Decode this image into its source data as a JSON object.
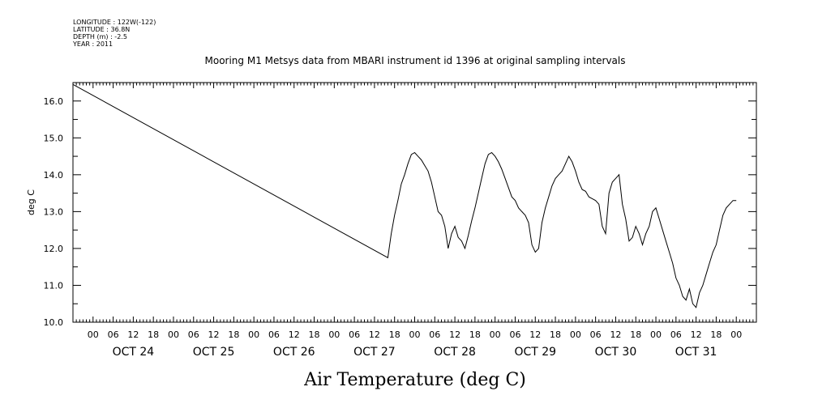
{
  "header": {
    "longitude": "LONGITUDE : 122W(-122)",
    "latitude": "LATITUDE : 36.8N",
    "depth": "DEPTH (m) : -2.5",
    "year": "YEAR : 2011"
  },
  "chart_data": {
    "type": "line",
    "title": "Mooring M1 Metsys data from MBARI instrument id 1396 at original sampling intervals",
    "xlabel": "Air Temperature (deg C)",
    "ylabel": "deg C",
    "ylim": [
      10.0,
      16.5
    ],
    "yticks": [
      "10.0",
      "11.0",
      "12.0",
      "13.0",
      "14.0",
      "15.0",
      "16.0"
    ],
    "xlim_hours": [
      -6,
      198
    ],
    "hour_labels": [
      "00",
      "06",
      "12",
      "18"
    ],
    "day_labels": [
      "OCT 24",
      "OCT 25",
      "OCT 26",
      "OCT 27",
      "OCT 28",
      "OCT 29",
      "OCT 30",
      "OCT 31"
    ],
    "grid": false,
    "legend": "none",
    "line_color": "#000000",
    "series": [
      {
        "x": [
          "2011-10-23T18:00",
          "2011-10-27T16:00",
          "2011-10-27T17:00",
          "2011-10-27T18:00",
          "2011-10-27T19:00",
          "2011-10-27T20:00",
          "2011-10-27T21:00",
          "2011-10-27T22:00",
          "2011-10-27T23:00",
          "2011-10-28T00:00",
          "2011-10-28T01:00",
          "2011-10-28T02:00",
          "2011-10-28T03:00",
          "2011-10-28T04:00",
          "2011-10-28T05:00",
          "2011-10-28T06:00",
          "2011-10-28T07:00",
          "2011-10-28T08:00",
          "2011-10-28T09:00",
          "2011-10-28T10:00",
          "2011-10-28T11:00",
          "2011-10-28T12:00",
          "2011-10-28T13:00",
          "2011-10-28T14:00",
          "2011-10-28T15:00",
          "2011-10-28T16:00",
          "2011-10-28T17:00",
          "2011-10-28T18:00",
          "2011-10-28T19:00",
          "2011-10-28T20:00",
          "2011-10-28T21:00",
          "2011-10-28T22:00",
          "2011-10-28T23:00",
          "2011-10-29T00:00",
          "2011-10-29T01:00",
          "2011-10-29T02:00",
          "2011-10-29T03:00",
          "2011-10-29T04:00",
          "2011-10-29T05:00",
          "2011-10-29T06:00",
          "2011-10-29T07:00",
          "2011-10-29T08:00",
          "2011-10-29T09:00",
          "2011-10-29T10:00",
          "2011-10-29T11:00",
          "2011-10-29T12:00",
          "2011-10-29T13:00",
          "2011-10-29T14:00",
          "2011-10-29T15:00",
          "2011-10-29T16:00",
          "2011-10-29T17:00",
          "2011-10-29T18:00",
          "2011-10-29T19:00",
          "2011-10-29T20:00",
          "2011-10-29T21:00",
          "2011-10-29T22:00",
          "2011-10-29T23:00",
          "2011-10-30T00:00",
          "2011-10-30T01:00",
          "2011-10-30T02:00",
          "2011-10-30T03:00",
          "2011-10-30T04:00",
          "2011-10-30T05:00",
          "2011-10-30T06:00",
          "2011-10-30T07:00",
          "2011-10-30T08:00",
          "2011-10-30T09:00",
          "2011-10-30T10:00",
          "2011-10-30T11:00",
          "2011-10-30T12:00",
          "2011-10-30T13:00",
          "2011-10-30T14:00",
          "2011-10-30T15:00",
          "2011-10-30T16:00",
          "2011-10-30T17:00",
          "2011-10-30T18:00",
          "2011-10-30T19:00",
          "2011-10-30T20:00",
          "2011-10-30T21:00",
          "2011-10-30T22:00",
          "2011-10-30T23:00",
          "2011-10-31T00:00",
          "2011-10-31T01:00",
          "2011-10-31T02:00",
          "2011-10-31T03:00",
          "2011-10-31T04:00",
          "2011-10-31T05:00",
          "2011-10-31T06:00",
          "2011-10-31T07:00",
          "2011-10-31T08:00",
          "2011-10-31T09:00",
          "2011-10-31T10:00",
          "2011-10-31T11:00",
          "2011-10-31T12:00",
          "2011-10-31T13:00",
          "2011-10-31T14:00",
          "2011-10-31T15:00",
          "2011-10-31T16:00",
          "2011-10-31T17:00",
          "2011-10-31T18:00",
          "2011-10-31T19:00",
          "2011-10-31T20:00",
          "2011-10-31T21:00",
          "2011-10-31T22:00",
          "2011-10-31T23:00",
          "2011-11-01T00:00"
        ],
        "y": [
          16.45,
          11.75,
          12.4,
          12.9,
          13.3,
          13.75,
          14.0,
          14.3,
          14.55,
          14.6,
          14.5,
          14.4,
          14.25,
          14.1,
          13.8,
          13.4,
          13.0,
          12.9,
          12.6,
          12.0,
          12.4,
          12.6,
          12.3,
          12.2,
          12.0,
          12.35,
          12.75,
          13.1,
          13.5,
          13.9,
          14.3,
          14.55,
          14.6,
          14.5,
          14.35,
          14.15,
          13.9,
          13.65,
          13.4,
          13.3,
          13.1,
          13.0,
          12.9,
          12.7,
          12.1,
          11.9,
          12.0,
          12.7,
          13.1,
          13.4,
          13.7,
          13.9,
          14.0,
          14.1,
          14.3,
          14.5,
          14.35,
          14.1,
          13.8,
          13.6,
          13.55,
          13.4,
          13.35,
          13.3,
          13.2,
          12.6,
          12.4,
          13.5,
          13.8,
          13.9,
          14.0,
          13.2,
          12.8,
          12.2,
          12.3,
          12.6,
          12.4,
          12.1,
          12.4,
          12.6,
          13.0,
          13.1,
          12.8,
          12.5,
          12.2,
          11.9,
          11.6,
          11.2,
          11.0,
          10.7,
          10.6,
          10.9,
          10.5,
          10.4,
          10.8,
          11.0,
          11.3,
          11.6,
          11.9,
          12.1,
          12.5,
          12.9,
          13.1,
          13.2,
          13.3,
          13.3
        ]
      }
    ]
  }
}
